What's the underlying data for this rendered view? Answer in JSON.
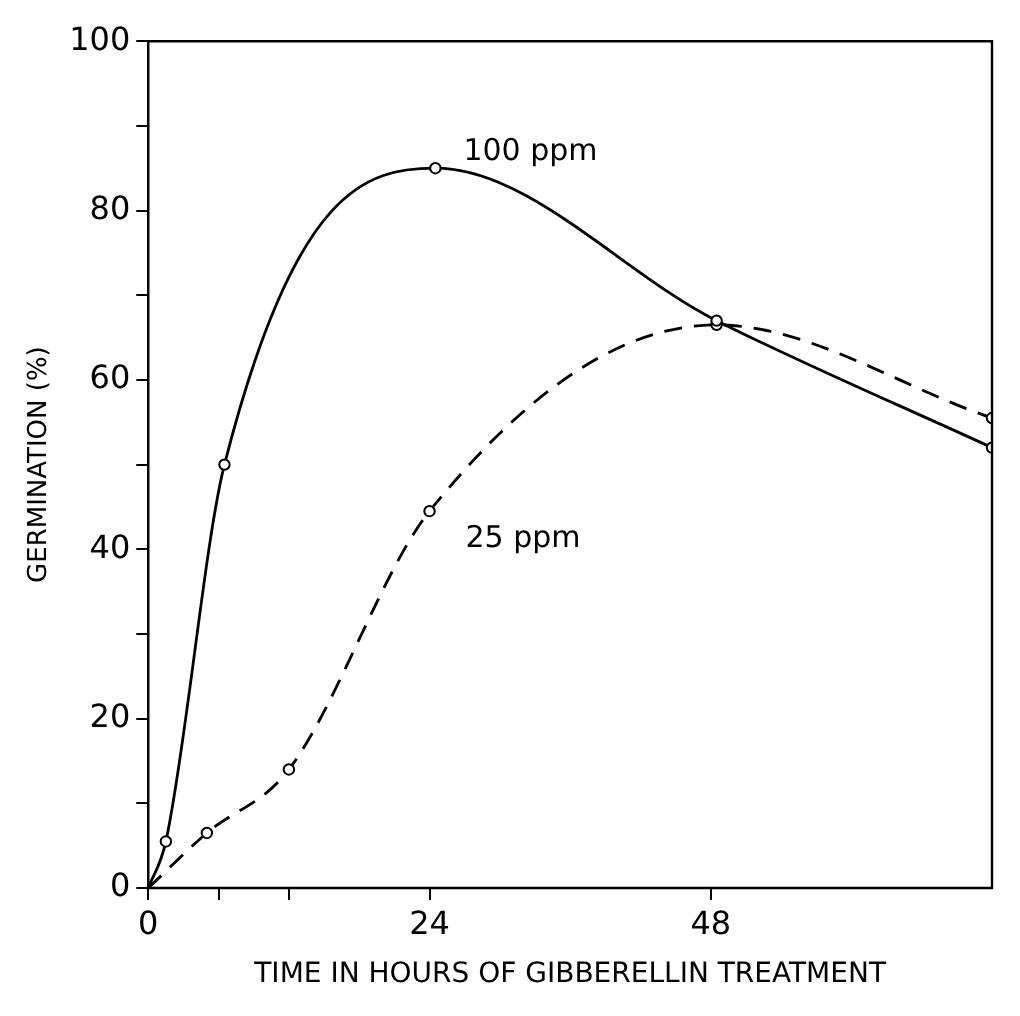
{
  "chart_data": {
    "type": "line",
    "xlabel": "TIME IN HOURS OF GIBBERELLIN TREATMENT",
    "ylabel": "GERMINATION (%)",
    "xlim": [
      0,
      72
    ],
    "xticks": [
      0,
      {
        "value": 6,
        "label": null
      },
      {
        "value": 12,
        "label": null
      },
      24,
      48
    ],
    "ylim": [
      0,
      100
    ],
    "yticks": [
      0,
      {
        "value": 10,
        "label": null
      },
      20,
      {
        "value": 30,
        "label": null
      },
      40,
      {
        "value": 50,
        "label": null
      },
      60,
      {
        "value": 70,
        "label": null
      },
      80,
      {
        "value": 90,
        "label": null
      },
      100
    ],
    "grid": false,
    "legend": false,
    "marker": "circle",
    "series": [
      {
        "name": "100 ppm",
        "color": "#000000",
        "line_style": "solid",
        "x": [
          0,
          1.5,
          6.5,
          24.5,
          48.5,
          72
        ],
        "values": [
          0,
          5.5,
          50,
          85,
          67,
          52
        ]
      },
      {
        "name": "25 ppm",
        "color": "#000000",
        "line_style": "dashed",
        "x": [
          0,
          5,
          12,
          24,
          48.5,
          72
        ],
        "values": [
          0,
          6.5,
          14,
          44.5,
          66.5,
          55.5
        ]
      }
    ]
  }
}
